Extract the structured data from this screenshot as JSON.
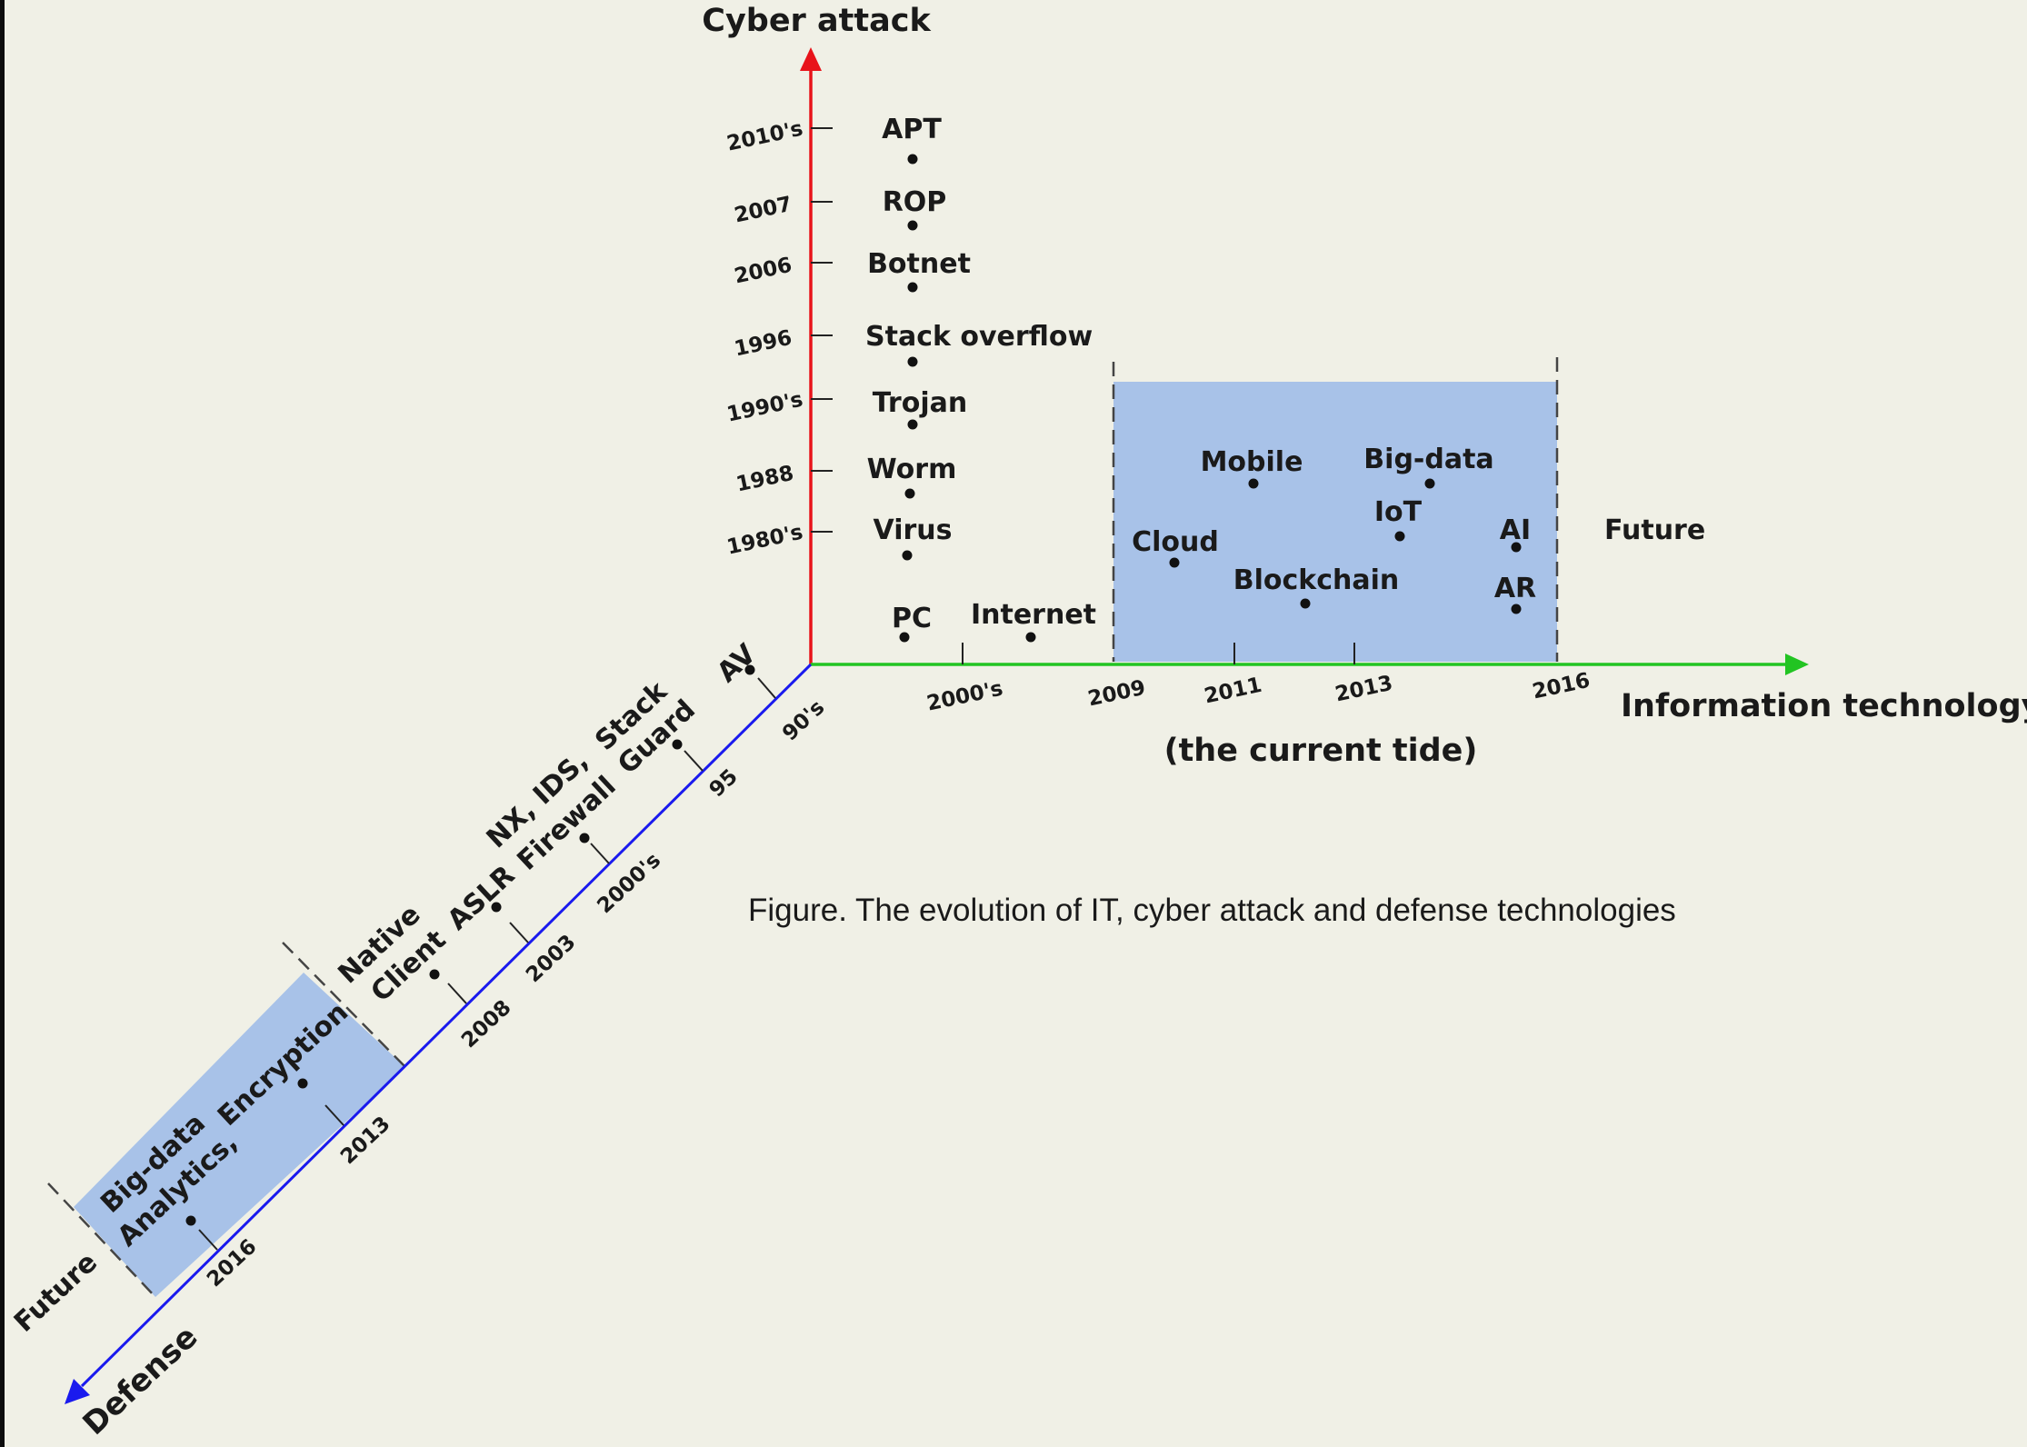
{
  "axes": {
    "attack": {
      "title": "Cyber attack",
      "color": "#e8131a"
    },
    "it": {
      "title": "Information technology",
      "color": "#22c422",
      "subtitle": "(the current tide)",
      "future_label": "Future"
    },
    "defense": {
      "title": "Defense",
      "color": "#1a1aee",
      "future_label": "Future"
    }
  },
  "highlight_color": "#a8c2e8",
  "attack_items": [
    {
      "year": "2010's",
      "label": "APT"
    },
    {
      "year": "2007",
      "label": "ROP"
    },
    {
      "year": "2006",
      "label": "Botnet"
    },
    {
      "year": "1996",
      "label": "Stack overflow"
    },
    {
      "year": "1990's",
      "label": "Trojan"
    },
    {
      "year": "1988",
      "label": "Worm"
    },
    {
      "year": "1980's",
      "label": "Virus"
    }
  ],
  "it_ticks": [
    "2000's",
    "2009",
    "2011",
    "2013",
    "2016"
  ],
  "it_items": [
    "PC",
    "Internet",
    "Cloud",
    "Mobile",
    "Blockchain",
    "IoT",
    "Big-data",
    "AI",
    "AR"
  ],
  "defense_ticks": [
    "90's",
    "95",
    "2000's",
    "2003",
    "2008",
    "2013",
    "2016"
  ],
  "defense_items": [
    "AV",
    "Stack",
    "Guard",
    "NX, IDS,",
    "Firewall",
    "ASLR",
    "Native",
    "Client",
    "Encryption",
    "Big-data",
    "Analytics,"
  ],
  "caption": "Figure. The evolution of IT, cyber attack and defense technologies"
}
